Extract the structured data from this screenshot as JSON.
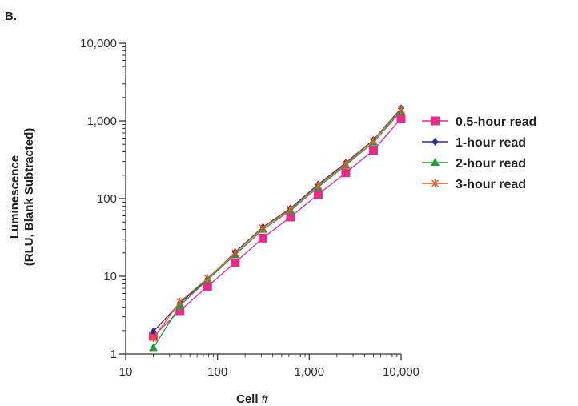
{
  "chart_data": {
    "panel_label": "B.",
    "type": "line",
    "xlabel": "Cell #",
    "ylabel_line1": "Luminescence",
    "ylabel_line2": "(RLU, Blank Subtracted)",
    "xscale": "log",
    "yscale": "log",
    "xlim": [
      10,
      10000
    ],
    "ylim": [
      1,
      10000
    ],
    "x_ticks": [
      10,
      100,
      1000,
      10000
    ],
    "x_tick_labels": [
      "10",
      "100",
      "1,000",
      "10,000"
    ],
    "y_ticks": [
      1,
      10,
      100,
      1000,
      10000
    ],
    "y_tick_labels": [
      "1",
      "10",
      "100",
      "1,000",
      "10,000"
    ],
    "grid": false,
    "legend_position": "right",
    "x": [
      20,
      39,
      78,
      156,
      312,
      625,
      1250,
      2500,
      5000,
      10000
    ],
    "series": [
      {
        "name": "0.5-hour read",
        "color": "#ec2a8b",
        "marker": "square",
        "values": [
          1.7,
          3.6,
          7.4,
          15,
          31,
          58,
          113,
          215,
          420,
          1070
        ]
      },
      {
        "name": "1-hour read",
        "color": "#2e3192",
        "marker": "diamond",
        "values": [
          1.95,
          4.5,
          9.2,
          20.5,
          43,
          75,
          152,
          290,
          570,
          1450
        ]
      },
      {
        "name": "2-hour read",
        "color": "#1f9d3a",
        "marker": "triangle",
        "values": [
          1.2,
          4.2,
          9,
          19,
          40,
          70,
          140,
          270,
          530,
          1330
        ]
      },
      {
        "name": "3-hour read",
        "color": "#e85a28",
        "marker": "asterisk",
        "values": [
          1.6,
          4.7,
          9.4,
          20,
          42,
          73,
          147,
          280,
          560,
          1400
        ]
      }
    ]
  }
}
